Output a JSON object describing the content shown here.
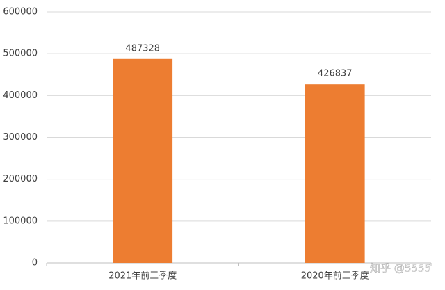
{
  "chart_data": {
    "type": "bar",
    "categories": [
      "2021年前三季度",
      "2020年前三季度"
    ],
    "values": [
      487328,
      426837
    ],
    "color": "#ed7d31",
    "ylim": [
      0,
      600000
    ],
    "yticks": [
      0,
      100000,
      200000,
      300000,
      400000,
      500000,
      600000
    ],
    "grid": true,
    "watermark": "知乎 @5555"
  }
}
